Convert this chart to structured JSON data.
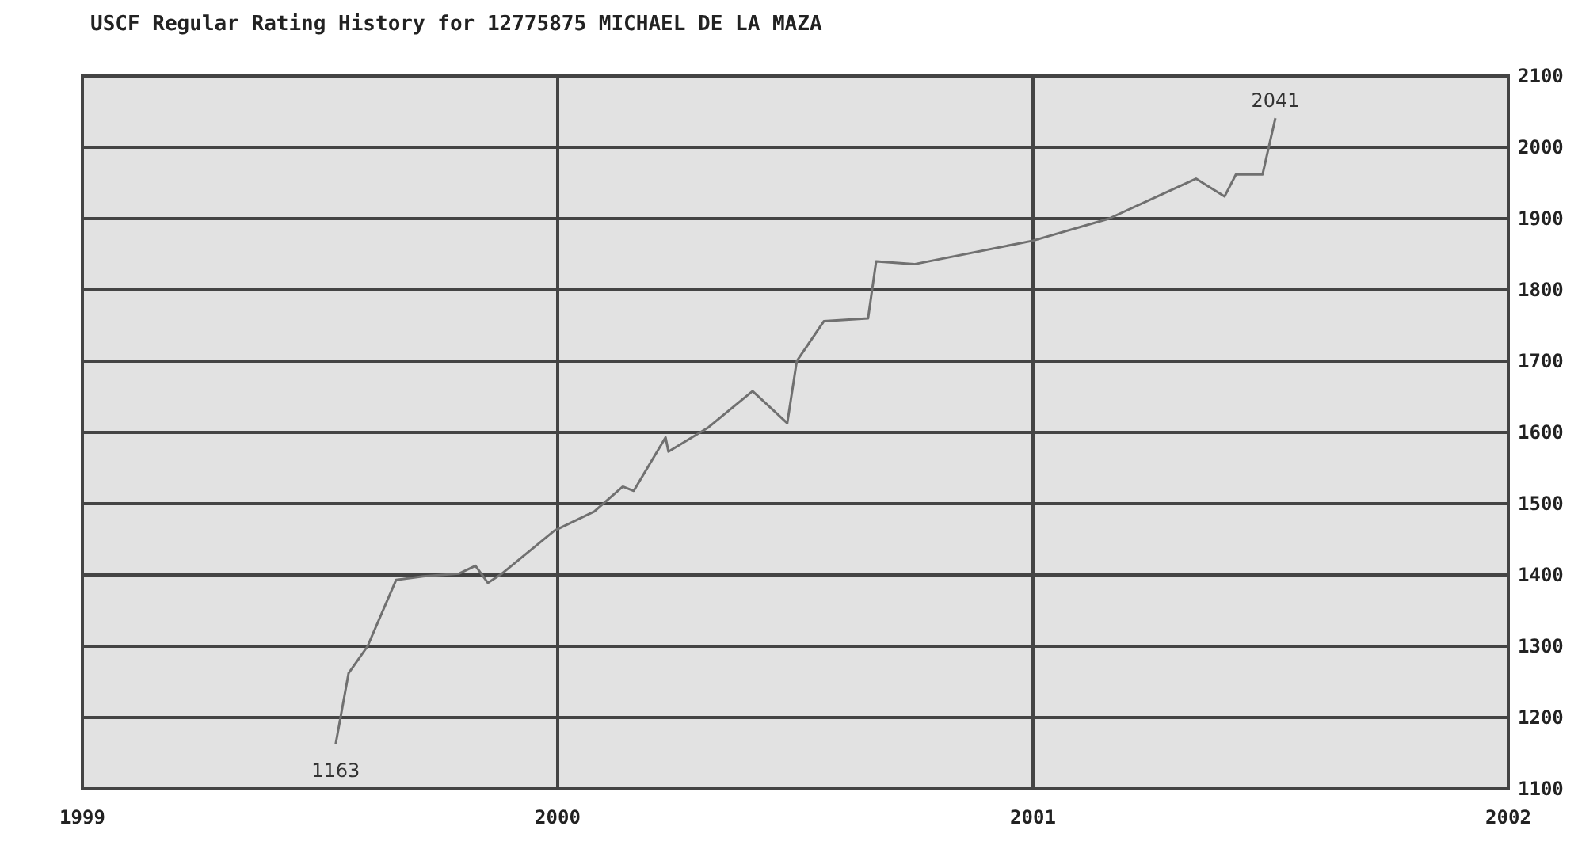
{
  "chart_data": {
    "type": "line",
    "title": "USCF Regular Rating History for 12775875 MICHAEL DE LA MAZA",
    "x": [
      1999.533,
      1999.56,
      1999.6,
      1999.66,
      1999.717,
      1999.793,
      1999.827,
      1999.853,
      1999.883,
      1999.993,
      2000.077,
      2000.137,
      2000.16,
      2000.227,
      2000.233,
      2000.317,
      2000.41,
      2000.483,
      2000.503,
      2000.56,
      2000.653,
      2000.67,
      2000.75,
      2001.0,
      2001.16,
      2001.343,
      2001.403,
      2001.427,
      2001.483,
      2001.51
    ],
    "series": [
      {
        "color": "#707070",
        "values": [
          1163,
          1262,
          1300,
          1393,
          1398,
          1402,
          1413,
          1389,
          1402,
          1462,
          1489,
          1524,
          1518,
          1593,
          1573,
          1607,
          1658,
          1613,
          1700,
          1756,
          1760,
          1840,
          1836,
          1869,
          1900,
          1956,
          1931,
          1962,
          1962,
          2041
        ],
        "value_labels": [
          "1163",
          null,
          null,
          null,
          null,
          null,
          null,
          null,
          null,
          null,
          null,
          null,
          null,
          null,
          null,
          null,
          null,
          null,
          null,
          null,
          null,
          null,
          null,
          null,
          null,
          null,
          null,
          null,
          null,
          "2041"
        ]
      }
    ],
    "xlim": [
      1999,
      2002
    ],
    "xticks": [
      1999,
      2000,
      2001,
      2002
    ],
    "ylim": [
      1100,
      2100
    ],
    "yticks": [
      1100,
      1200,
      1300,
      1400,
      1500,
      1600,
      1700,
      1800,
      1900,
      2000,
      2100
    ],
    "grid": true
  }
}
